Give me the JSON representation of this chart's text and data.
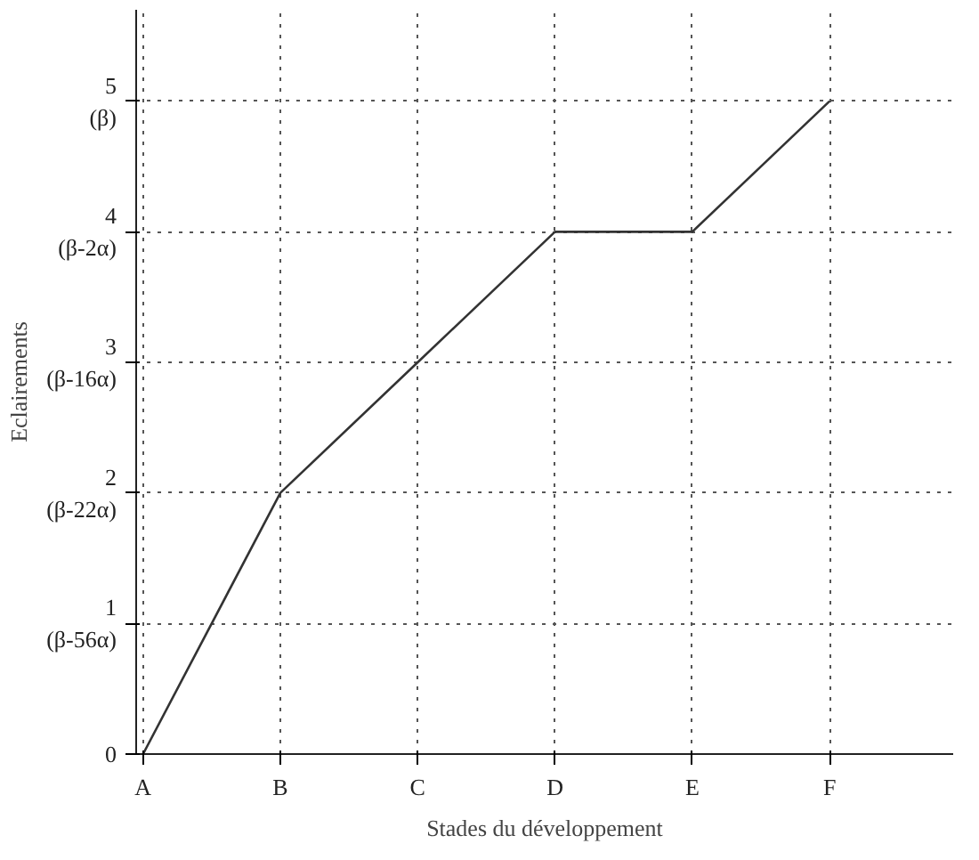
{
  "chart_data": {
    "type": "line",
    "xlabel": "Stades du développement",
    "ylabel": "Eclairements",
    "categories": [
      "A",
      "B",
      "C",
      "D",
      "E",
      "F"
    ],
    "values": [
      0,
      2,
      3,
      4,
      4,
      5
    ],
    "color": "#333333",
    "ylim": [
      0,
      5.7
    ],
    "yticks": [
      {
        "value": 0,
        "label": "0"
      },
      {
        "value": 1,
        "label": "1\n(β-56α)"
      },
      {
        "value": 2,
        "label": "2\n(β-22α)"
      },
      {
        "value": 3,
        "label": "3\n(β-16α)"
      },
      {
        "value": 4,
        "label": "4\n(β-2α)"
      },
      {
        "value": 5,
        "label": "5\n(β)"
      }
    ],
    "grid": true,
    "line_style": "solid",
    "marker": "none"
  }
}
